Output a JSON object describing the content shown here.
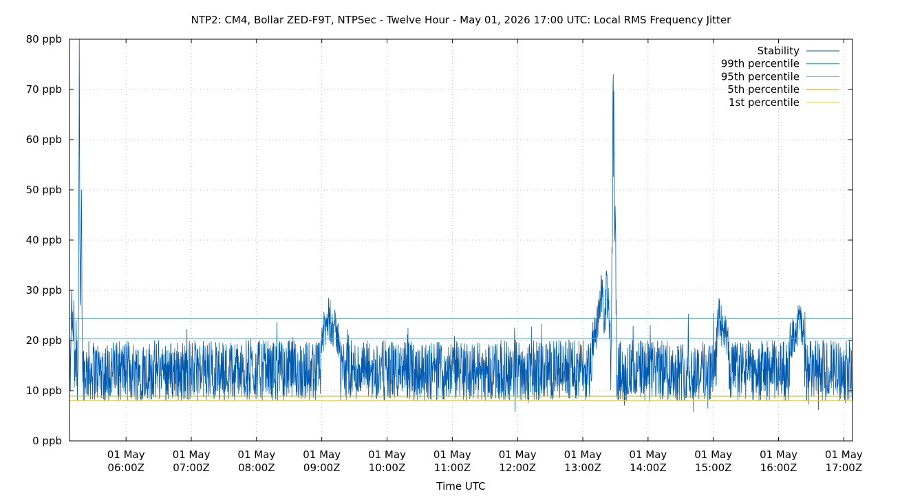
{
  "chart_data": {
    "type": "line",
    "title": "NTP2: CM4, Bollar ZED-F9T, NTPSec - Twelve Hour - May 01, 2026 17:00 UTC: Local RMS Frequency Jitter",
    "xlabel": "Time UTC",
    "ylabel": "",
    "x_range": [
      "2026-05-01T05:08Z",
      "2026-05-01T17:08Z"
    ],
    "ylim": [
      0,
      80
    ],
    "yunit": "ppb",
    "grid": true,
    "legend_position": "top-right",
    "y_ticks": [
      {
        "value": 0,
        "label": "0 ppb"
      },
      {
        "value": 10,
        "label": "10 ppb"
      },
      {
        "value": 20,
        "label": "20 ppb"
      },
      {
        "value": 30,
        "label": "30 ppb"
      },
      {
        "value": 40,
        "label": "40 ppb"
      },
      {
        "value": 50,
        "label": "50 ppb"
      },
      {
        "value": 60,
        "label": "60 ppb"
      },
      {
        "value": 70,
        "label": "70 ppb"
      },
      {
        "value": 80,
        "label": "80 ppb"
      }
    ],
    "x_ticks": [
      {
        "value": "06:00",
        "line1": "01 May",
        "line2": "06:00Z"
      },
      {
        "value": "07:00",
        "line1": "01 May",
        "line2": "07:00Z"
      },
      {
        "value": "08:00",
        "line1": "01 May",
        "line2": "08:00Z"
      },
      {
        "value": "09:00",
        "line1": "01 May",
        "line2": "09:00Z"
      },
      {
        "value": "10:00",
        "line1": "01 May",
        "line2": "10:00Z"
      },
      {
        "value": "11:00",
        "line1": "01 May",
        "line2": "11:00Z"
      },
      {
        "value": "12:00",
        "line1": "01 May",
        "line2": "12:00Z"
      },
      {
        "value": "13:00",
        "line1": "01 May",
        "line2": "13:00Z"
      },
      {
        "value": "14:00",
        "line1": "01 May",
        "line2": "14:00Z"
      },
      {
        "value": "15:00",
        "line1": "01 May",
        "line2": "15:00Z"
      },
      {
        "value": "16:00",
        "line1": "01 May",
        "line2": "16:00Z"
      },
      {
        "value": "17:00",
        "line1": "01 May",
        "line2": "17:00Z"
      }
    ],
    "series": [
      {
        "name": "Stability",
        "color": "#005bb0",
        "baseline_ppb": 14,
        "typical_range_ppb": [
          9,
          20
        ],
        "points": [
          [
            "05:08",
            7.5
          ],
          [
            "05:09",
            16
          ],
          [
            "05:10",
            30
          ],
          [
            "05:11",
            22
          ],
          [
            "05:12",
            28
          ],
          [
            "05:13",
            12
          ],
          [
            "05:14",
            24
          ],
          [
            "05:15",
            20
          ],
          [
            "05:16",
            14
          ],
          [
            "05:17",
            80
          ],
          [
            "05:18",
            27
          ],
          [
            "05:19",
            50
          ],
          [
            "05:20",
            14
          ],
          [
            "05:30",
            18
          ],
          [
            "05:40",
            8
          ],
          [
            "06:00",
            14
          ],
          [
            "06:30",
            20
          ],
          [
            "07:00",
            12
          ],
          [
            "07:30",
            18
          ],
          [
            "08:00",
            13
          ],
          [
            "08:30",
            17
          ],
          [
            "08:50",
            10
          ],
          [
            "09:00",
            22
          ],
          [
            "09:07",
            26.5
          ],
          [
            "09:30",
            14
          ],
          [
            "10:00",
            12
          ],
          [
            "10:30",
            18
          ],
          [
            "11:00",
            14
          ],
          [
            "11:30",
            16
          ],
          [
            "12:00",
            12
          ],
          [
            "12:30",
            17
          ],
          [
            "12:58",
            14
          ],
          [
            "13:05",
            19
          ],
          [
            "13:10",
            22
          ],
          [
            "13:15",
            27
          ],
          [
            "13:18",
            32
          ],
          [
            "13:20",
            24
          ],
          [
            "13:22",
            33
          ],
          [
            "13:24",
            28
          ],
          [
            "13:26",
            18
          ],
          [
            "13:28",
            73
          ],
          [
            "13:29",
            56
          ],
          [
            "13:30",
            44
          ],
          [
            "13:31",
            20
          ],
          [
            "13:33",
            14
          ],
          [
            "13:40",
            8
          ],
          [
            "14:00",
            13
          ],
          [
            "14:30",
            18
          ],
          [
            "14:55",
            6.5
          ],
          [
            "15:00",
            14
          ],
          [
            "15:05",
            26.5
          ],
          [
            "15:30",
            12
          ],
          [
            "16:00",
            16
          ],
          [
            "16:20",
            26
          ],
          [
            "16:30",
            13
          ],
          [
            "17:00",
            18
          ],
          [
            "17:08",
            14
          ]
        ]
      },
      {
        "name": "99th percentile",
        "color": "#1b8a8a",
        "value": 24.4
      },
      {
        "name": "95th percentile",
        "color": "#5aa9d6",
        "value": 20.4
      },
      {
        "name": "5th percentile",
        "color": "#d4a017",
        "value": 8.9
      },
      {
        "name": "1st percentile",
        "color": "#e8c84a",
        "value": 8.0
      }
    ]
  }
}
